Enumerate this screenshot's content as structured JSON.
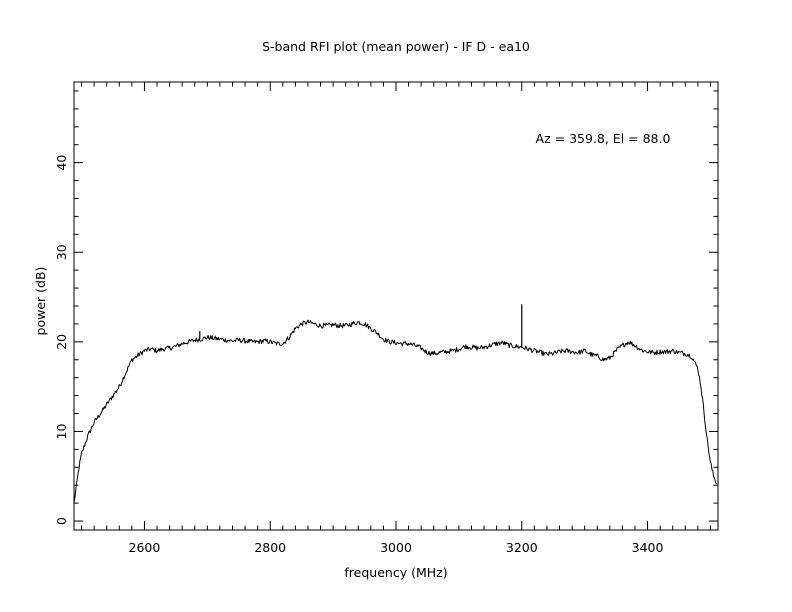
{
  "chart_data": {
    "type": "line",
    "title": "S-band RFI plot (mean power) - IF D - ea10",
    "xlabel": "frequency (MHz)",
    "ylabel": "power (dB)",
    "annotation": "Az = 359.8, El = 88.0",
    "xlim": [
      2488,
      3512
    ],
    "ylim": [
      -1,
      49
    ],
    "x_ticks": [
      2600,
      2800,
      3000,
      3200,
      3400
    ],
    "y_ticks": [
      0,
      10,
      20,
      30,
      40
    ],
    "grid": false,
    "line_color": "#000000",
    "series": [
      {
        "x": [
          2488,
          2492,
          2496,
          2500,
          2505,
          2510,
          2520,
          2530,
          2540,
          2550,
          2560,
          2570,
          2580,
          2590,
          2600,
          2610,
          2620,
          2630,
          2640,
          2650,
          2660,
          2670,
          2680,
          2690,
          2700,
          2710,
          2720,
          2730,
          2740,
          2750,
          2760,
          2770,
          2780,
          2790,
          2800,
          2810,
          2820,
          2830,
          2840,
          2850,
          2860,
          2870,
          2880,
          2890,
          2900,
          2910,
          2920,
          2930,
          2940,
          2950,
          2960,
          2970,
          2980,
          2990,
          3000,
          3010,
          3020,
          3030,
          3040,
          3050,
          3060,
          3070,
          3080,
          3090,
          3100,
          3110,
          3120,
          3130,
          3140,
          3150,
          3160,
          3170,
          3180,
          3190,
          3200,
          3210,
          3220,
          3230,
          3240,
          3250,
          3260,
          3270,
          3280,
          3290,
          3300,
          3310,
          3320,
          3330,
          3340,
          3350,
          3360,
          3370,
          3380,
          3390,
          3400,
          3410,
          3420,
          3430,
          3440,
          3450,
          3460,
          3470,
          3480,
          3485,
          3490,
          3495,
          3500,
          3505,
          3510
        ],
        "y": [
          2.0,
          4.0,
          6.0,
          7.5,
          8.5,
          9.5,
          11.0,
          12.0,
          13.0,
          14.0,
          15.0,
          16.5,
          18.0,
          18.5,
          19.0,
          19.2,
          19.0,
          19.2,
          19.3,
          19.5,
          19.8,
          20.0,
          20.2,
          20.3,
          20.5,
          20.4,
          20.3,
          20.2,
          20.1,
          20.2,
          20.1,
          20.0,
          20.0,
          20.1,
          20.0,
          19.8,
          19.8,
          20.5,
          21.5,
          22.0,
          22.2,
          22.0,
          21.8,
          21.8,
          21.9,
          21.8,
          21.8,
          22.0,
          22.2,
          22.0,
          21.5,
          21.0,
          20.3,
          20.0,
          19.9,
          19.8,
          19.8,
          19.6,
          19.3,
          18.8,
          18.7,
          18.8,
          18.9,
          19.0,
          19.2,
          19.5,
          19.4,
          19.3,
          19.4,
          19.6,
          19.8,
          19.9,
          19.6,
          19.5,
          19.4,
          19.2,
          19.0,
          18.8,
          18.6,
          18.7,
          18.9,
          19.0,
          18.9,
          18.8,
          19.0,
          18.6,
          18.4,
          18.0,
          18.2,
          19.0,
          19.6,
          20.0,
          19.6,
          19.1,
          18.9,
          18.8,
          18.9,
          18.9,
          19.0,
          18.8,
          18.7,
          18.4,
          17.0,
          15.0,
          12.0,
          9.0,
          6.5,
          5.0,
          4.2
        ]
      }
    ],
    "spikes": [
      {
        "x": 3200,
        "y": 24.2
      },
      {
        "x": 2688,
        "y": 21.2
      }
    ]
  }
}
